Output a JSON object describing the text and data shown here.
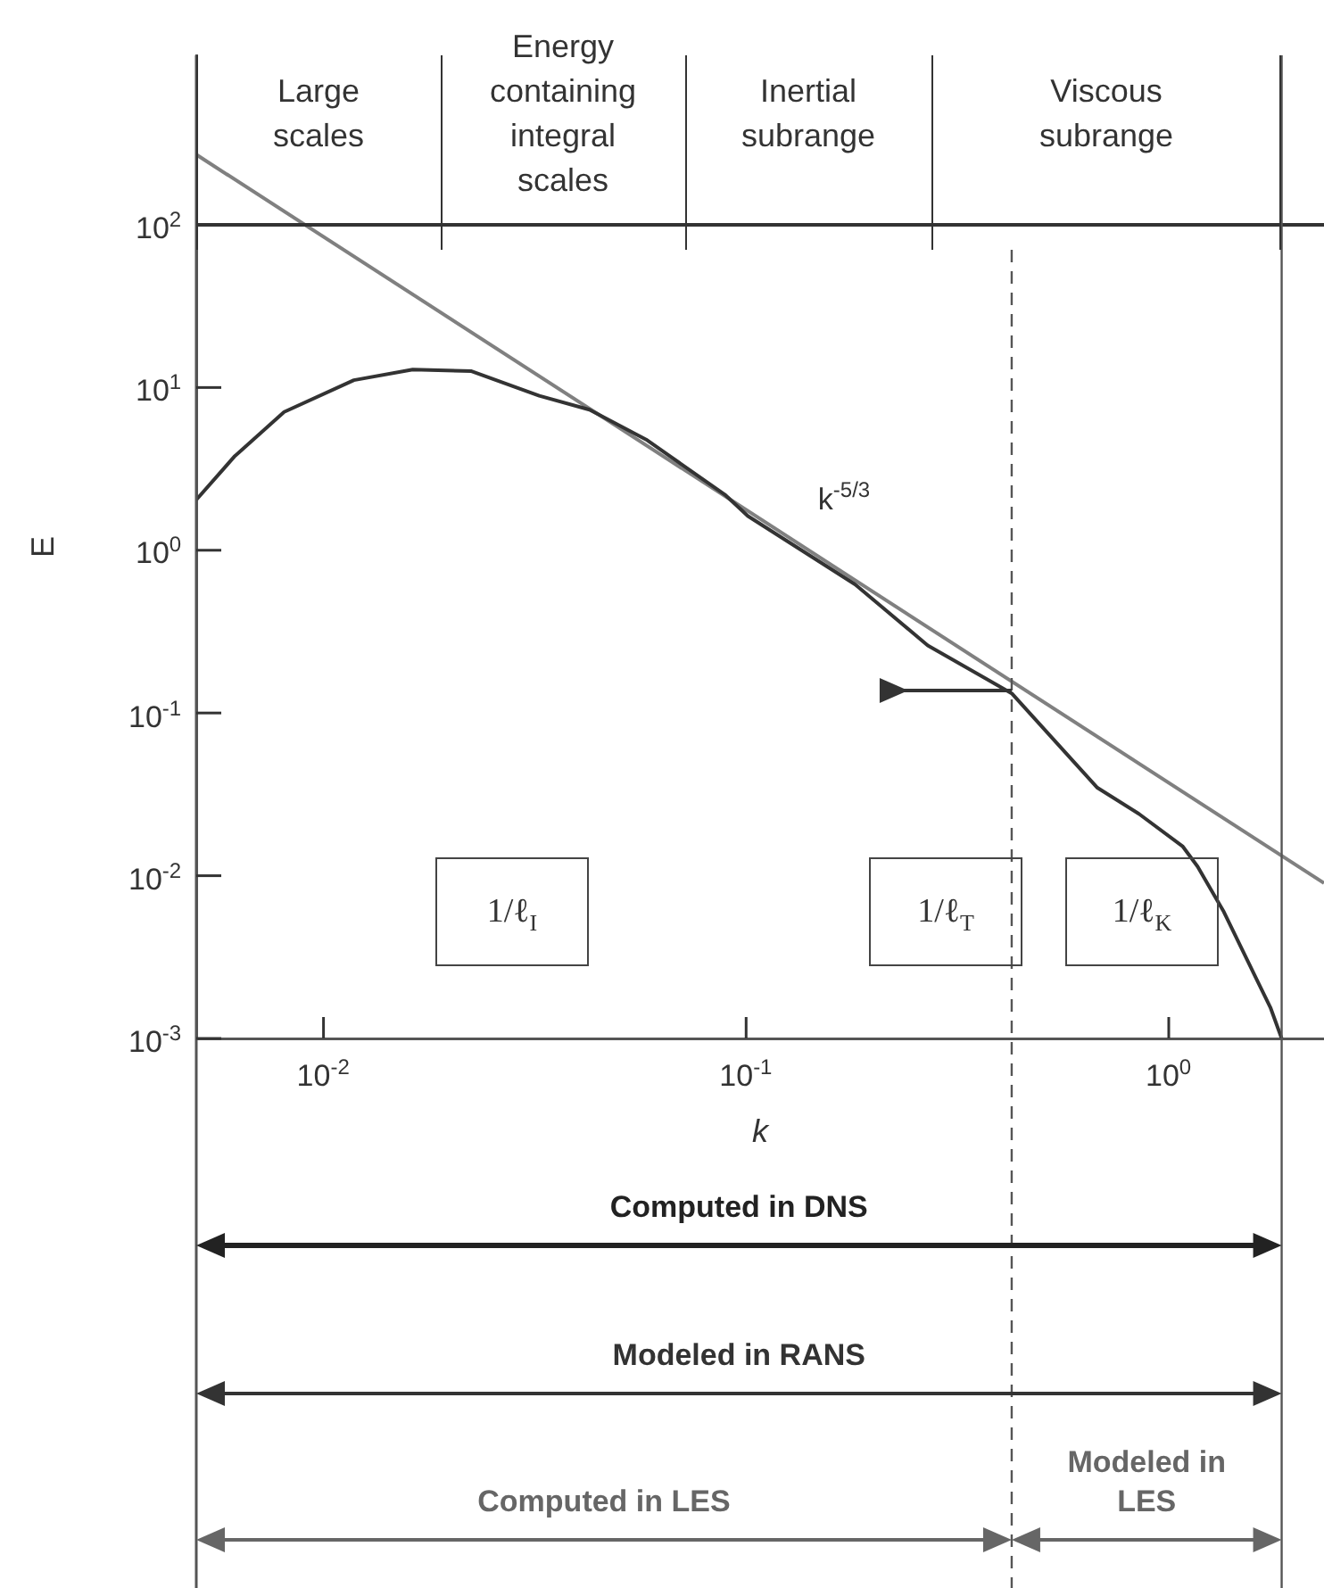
{
  "chart_data": {
    "type": "line",
    "xlabel": "k",
    "ylabel": "E",
    "log": "xy",
    "xlim": [
      0.005,
      2.33
    ],
    "ylim": [
      0.001,
      1100
    ],
    "xticks": [
      {
        "value": 0.01,
        "label": "10$^{-2}$"
      },
      {
        "value": 0.1,
        "label": "10$^{-1}$"
      },
      {
        "value": 1,
        "label": "10$^{0}$"
      }
    ],
    "yticks": [
      {
        "value": 0.001,
        "label": "10$^{-3}$"
      },
      {
        "value": 0.01,
        "label": "10$^{-2}$"
      },
      {
        "value": 0.1,
        "label": "10$^{-1}$"
      },
      {
        "value": 1,
        "label": "10$^{0}$"
      },
      {
        "value": 10,
        "label": "10$^{1}$"
      },
      {
        "value": 100,
        "label": "10$^{2}$"
      }
    ],
    "series": [
      {
        "color": "#333333",
        "x": [
          0.005,
          0.00615,
          0.00807,
          0.0118,
          0.01626,
          0.0224,
          0.0324,
          0.0426,
          0.058,
          0.089,
          0.101,
          0.181,
          0.269,
          0.425,
          0.678,
          0.85,
          1.08,
          1.17,
          1.35,
          1.63,
          1.74,
          1.85
        ],
        "values": [
          2.04,
          3.76,
          7.08,
          11.1,
          12.9,
          12.6,
          8.9,
          7.3,
          4.79,
          2.2,
          1.62,
          0.617,
          0.26,
          0.132,
          0.0347,
          0.024,
          0.0151,
          0.0114,
          0.006,
          0.00219,
          0.00155,
          0.001
        ]
      },
      {
        "color": "#808080",
        "x": [
          0.005,
          2.33
        ],
        "values": [
          270,
          0.009
        ]
      }
    ],
    "ref_lines": [
      {
        "axis": "y",
        "value": 100,
        "color": "#333333"
      },
      {
        "axis": "x",
        "value": 0.425,
        "line_style": "dashed",
        "color": "#555555"
      },
      {
        "axis": "x",
        "value": 1.85,
        "color": "#555555"
      }
    ],
    "annotations": [
      "Large scales",
      "Energy containing integral scales",
      "Inertial subrange",
      "Viscous subrange",
      "k$^{-5/3}$",
      "1/ℓ$_{I}$",
      "1/ℓ$_{T}$",
      "1/ℓ$_{K}$",
      "Computed in DNS",
      "Modeled in RANS",
      "Computed in LES",
      "Modeled in LES"
    ],
    "grid": false,
    "legend": false,
    "marker": "none",
    "line_style": "solid"
  }
}
